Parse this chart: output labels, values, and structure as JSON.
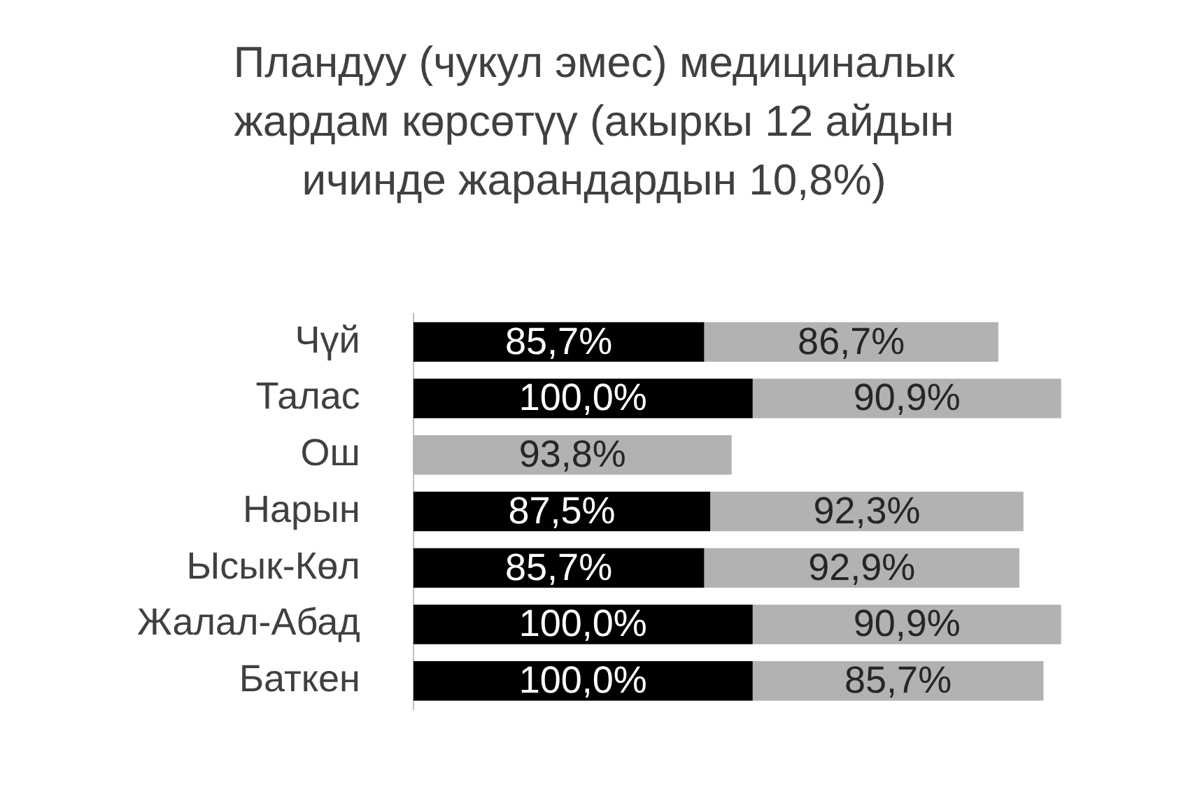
{
  "chart_data": {
    "type": "bar",
    "orientation": "horizontal",
    "stacked": true,
    "title": "Пландуу (чукул эмес) медициналык жардам көрсөтүү (акыркы 12 айдын ичинде жарандардын 10,8%)",
    "categories": [
      "Чүй",
      "Талас",
      "Ош",
      "Нарын",
      "Ысык-Көл",
      "Жалал-Абад",
      "Баткен"
    ],
    "series": [
      {
        "color": "#000000",
        "values": [
          85.7,
          100.0,
          null,
          87.5,
          85.7,
          100.0,
          100.0
        ],
        "value_labels": [
          "85,7%",
          "100,0%",
          null,
          "87,5%",
          "85,7%",
          "100,0%",
          "100,0%"
        ]
      },
      {
        "color": "#b2b2b2",
        "values": [
          86.7,
          90.9,
          93.8,
          92.3,
          92.9,
          90.9,
          85.7
        ],
        "value_labels": [
          "86,7%",
          "90,9%",
          "93,8%",
          "92,3%",
          "92,9%",
          "90,9%",
          "85,7%"
        ]
      }
    ],
    "xlim": [
      0,
      192
    ],
    "tick_labels": "y"
  }
}
